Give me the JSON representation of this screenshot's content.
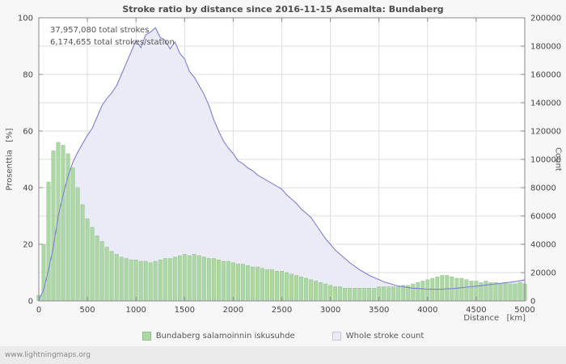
{
  "page": {
    "title": "Stroke ratio by distance since 2016-11-15 Asemalta: Bundaberg",
    "annotation_line1": "37,957,080 total strokes",
    "annotation_line2": "6,174,655 total strokes/station",
    "footer": "www.lightningmaps.org"
  },
  "axes": {
    "left_label": "Prosenttia   [%]",
    "right_label": "Count",
    "x_label": "Distance   [km]"
  },
  "legend": [
    {
      "label": "Bundaberg salamoinnin iskusuhde",
      "color": "#aed7a6",
      "border": "#8fc286"
    },
    {
      "label": "Whole stroke count",
      "color": "#ebebf7",
      "border": "#c6c6e4"
    }
  ],
  "chart_data": {
    "type": "mixed",
    "title": "Stroke ratio by distance since 2016-11-15 Asemalta: Bundaberg",
    "grid": true,
    "x": [
      0,
      50,
      100,
      150,
      200,
      250,
      300,
      350,
      400,
      450,
      500,
      550,
      600,
      650,
      700,
      750,
      800,
      850,
      900,
      950,
      1000,
      1050,
      1100,
      1150,
      1200,
      1250,
      1300,
      1350,
      1400,
      1450,
      1500,
      1550,
      1600,
      1650,
      1700,
      1750,
      1800,
      1850,
      1900,
      1950,
      2000,
      2050,
      2100,
      2150,
      2200,
      2250,
      2300,
      2350,
      2400,
      2450,
      2500,
      2550,
      2600,
      2650,
      2700,
      2750,
      2800,
      2850,
      2900,
      2950,
      3000,
      3050,
      3100,
      3150,
      3200,
      3250,
      3300,
      3350,
      3400,
      3450,
      3500,
      3550,
      3600,
      3650,
      3700,
      3750,
      3800,
      3850,
      3900,
      3950,
      4000,
      4050,
      4100,
      4150,
      4200,
      4250,
      4300,
      4350,
      4400,
      4450,
      4500,
      4550,
      4600,
      4650,
      4700,
      4750,
      4800,
      4850,
      4900,
      4950,
      5000
    ],
    "series": [
      {
        "name": "Bundaberg salamoinnin iskusuhde",
        "type": "bar",
        "axis": "left",
        "color": "#aed7a6",
        "border": "#8fc286",
        "values": [
          2,
          20,
          42,
          53,
          56,
          55,
          52,
          47,
          40,
          34,
          29,
          26,
          23,
          21,
          19,
          17.5,
          16.5,
          15.5,
          15,
          14.5,
          14.5,
          14,
          14,
          13.5,
          14,
          14.5,
          15,
          15,
          15.5,
          16,
          16.5,
          16,
          16.5,
          16,
          15.5,
          15,
          15,
          14.5,
          14,
          14,
          13.5,
          13,
          13,
          12.5,
          12,
          12,
          11.5,
          11,
          11,
          10.5,
          10.5,
          10,
          9.5,
          9,
          8.5,
          8,
          7.5,
          7,
          6.5,
          6,
          5.5,
          5,
          5,
          4.5,
          4.5,
          4.5,
          4.5,
          4.5,
          4.5,
          4.5,
          5,
          5,
          5,
          5,
          5,
          5.5,
          5.5,
          6,
          6.5,
          7,
          7.5,
          8,
          8.5,
          9,
          9,
          8.5,
          8,
          8,
          7.5,
          7,
          7,
          6.5,
          7,
          6.5,
          6.5,
          6,
          6.5,
          6,
          6,
          6.5,
          6
        ]
      },
      {
        "name": "Whole stroke count",
        "type": "area-line",
        "axis": "right",
        "fill": "#ebebf7",
        "line_color": "#7f7fd2",
        "values": [
          500,
          8000,
          22000,
          38000,
          60000,
          75000,
          88000,
          98000,
          105000,
          111000,
          117000,
          122000,
          130000,
          138000,
          143000,
          147000,
          152000,
          160000,
          168000,
          176000,
          184000,
          179000,
          188000,
          190000,
          193000,
          186000,
          184000,
          178000,
          183000,
          175000,
          171000,
          162000,
          158000,
          152000,
          146000,
          138000,
          128000,
          120000,
          113000,
          108000,
          104000,
          99000,
          97000,
          94000,
          92000,
          89000,
          87000,
          85000,
          83000,
          81000,
          79000,
          75000,
          72000,
          69000,
          65000,
          62000,
          59000,
          54000,
          49000,
          44000,
          40000,
          36000,
          33000,
          30000,
          27000,
          24500,
          22000,
          20000,
          18000,
          16500,
          15000,
          13500,
          12500,
          11500,
          10500,
          10000,
          9500,
          9000,
          8800,
          8500,
          8300,
          8200,
          8200,
          8300,
          8500,
          8700,
          9000,
          9300,
          9700,
          10000,
          10400,
          10800,
          11200,
          11600,
          12000,
          12400,
          12800,
          13200,
          13700,
          14200,
          14800
        ]
      }
    ],
    "x_axis": {
      "min": 0,
      "max": 5000,
      "ticks": [
        0,
        500,
        1000,
        1500,
        2000,
        2500,
        3000,
        3500,
        4000,
        4500,
        5000
      ],
      "label": "Distance [km]"
    },
    "y_left": {
      "min": 0,
      "max": 100,
      "ticks": [
        0,
        20,
        40,
        60,
        80,
        100
      ],
      "label": "Prosenttia [%]"
    },
    "y_right": {
      "min": 0,
      "max": 200000,
      "ticks": [
        0,
        20000,
        40000,
        60000,
        80000,
        100000,
        120000,
        140000,
        160000,
        180000,
        200000
      ],
      "label": "Count"
    },
    "legend_position": "bottom"
  }
}
